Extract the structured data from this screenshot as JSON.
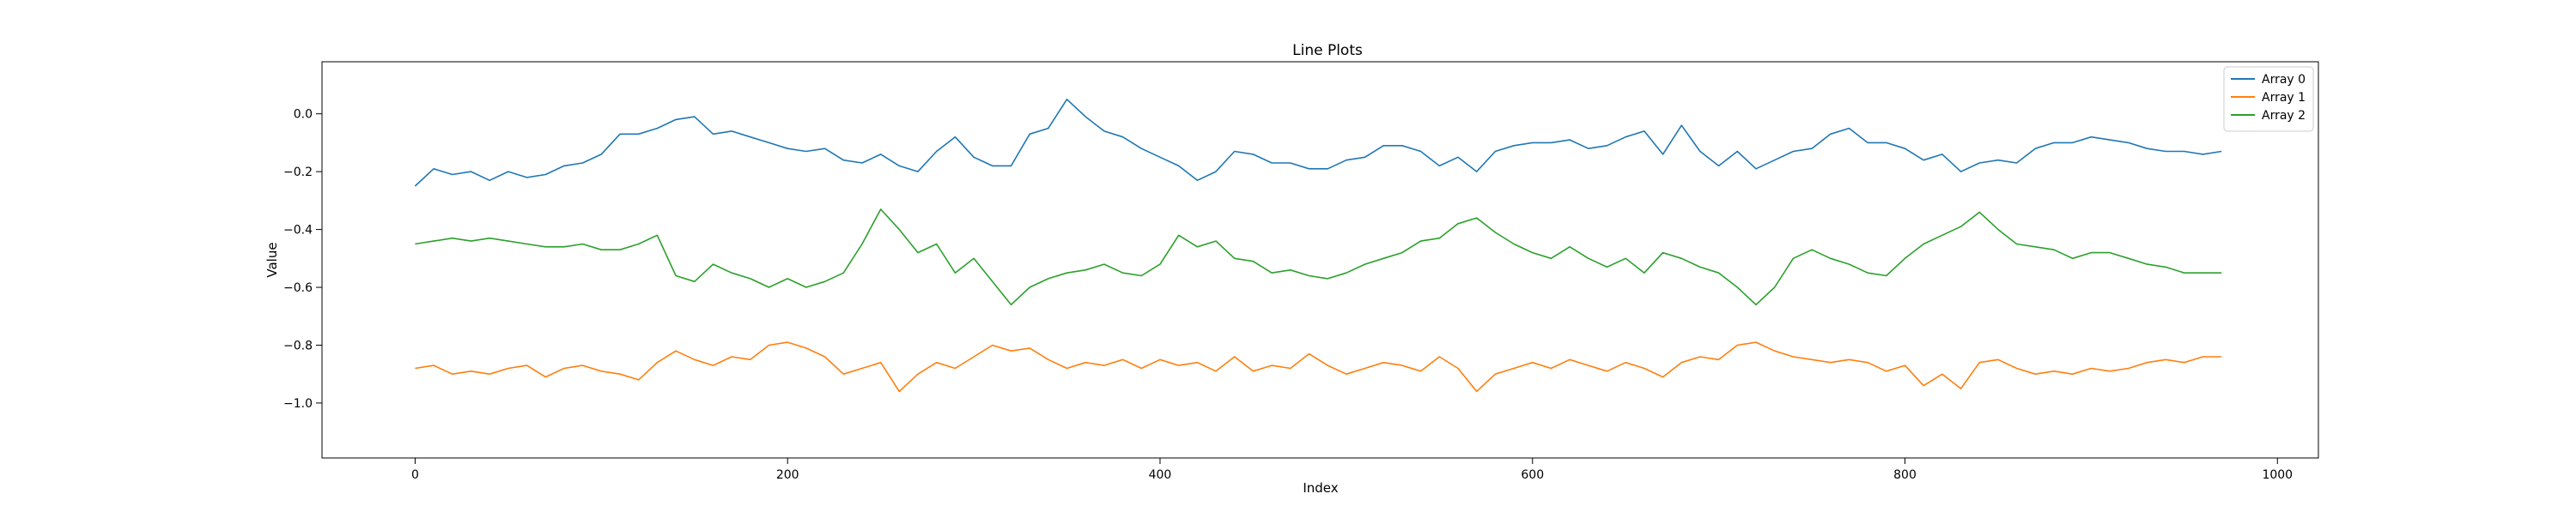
{
  "chart_data": {
    "type": "line",
    "title": "Line Plots",
    "xlabel": "Index",
    "ylabel": "Value",
    "xlim": [
      -50,
      1022
    ],
    "ylim": [
      -1.19,
      0.18
    ],
    "x_ticks": [
      0,
      200,
      400,
      600,
      800,
      1000
    ],
    "x_tick_labels": [
      "0",
      "200",
      "400",
      "600",
      "800",
      "1000"
    ],
    "y_ticks": [
      0.0,
      -0.2,
      -0.4,
      -0.6,
      -0.8,
      -1.0
    ],
    "y_tick_labels": [
      "0.0",
      "−0.2",
      "−0.4",
      "−0.6",
      "−0.8",
      "−1.0"
    ],
    "grid": false,
    "legend_position": "top-right",
    "series": [
      {
        "name": "Array 0",
        "color": "#1f77b4",
        "x": [
          0,
          10,
          20,
          30,
          40,
          50,
          60,
          70,
          80,
          90,
          100,
          110,
          120,
          130,
          140,
          150,
          160,
          170,
          180,
          190,
          200,
          210,
          220,
          230,
          240,
          250,
          260,
          270,
          280,
          290,
          300,
          310,
          320,
          330,
          340,
          350,
          360,
          370,
          380,
          390,
          400,
          410,
          420,
          430,
          440,
          450,
          460,
          470,
          480,
          490,
          500,
          510,
          520,
          530,
          540,
          550,
          560,
          570,
          580,
          590,
          600,
          610,
          620,
          630,
          640,
          650,
          660,
          670,
          680,
          690,
          700,
          710,
          720,
          730,
          740,
          750,
          760,
          770,
          780,
          790,
          800,
          810,
          820,
          830,
          840,
          850,
          860,
          870,
          880,
          890,
          900,
          910,
          920,
          930,
          940,
          950,
          960,
          970
        ],
        "values": [
          -0.25,
          -0.19,
          -0.21,
          -0.2,
          -0.23,
          -0.2,
          -0.22,
          -0.21,
          -0.18,
          -0.17,
          -0.14,
          -0.07,
          -0.07,
          -0.05,
          -0.02,
          -0.01,
          -0.07,
          -0.06,
          -0.08,
          -0.1,
          -0.12,
          -0.13,
          -0.12,
          -0.16,
          -0.17,
          -0.14,
          -0.18,
          -0.2,
          -0.13,
          -0.08,
          -0.15,
          -0.18,
          -0.18,
          -0.07,
          -0.05,
          0.05,
          -0.01,
          -0.06,
          -0.08,
          -0.12,
          -0.15,
          -0.18,
          -0.23,
          -0.2,
          -0.13,
          -0.14,
          -0.17,
          -0.17,
          -0.19,
          -0.19,
          -0.16,
          -0.15,
          -0.11,
          -0.11,
          -0.13,
          -0.18,
          -0.15,
          -0.2,
          -0.13,
          -0.11,
          -0.1,
          -0.1,
          -0.09,
          -0.12,
          -0.11,
          -0.08,
          -0.06,
          -0.14,
          -0.04,
          -0.13,
          -0.18,
          -0.13,
          -0.19,
          -0.16,
          -0.13,
          -0.12,
          -0.07,
          -0.05,
          -0.1,
          -0.1,
          -0.12,
          -0.16,
          -0.14,
          -0.2,
          -0.17,
          -0.16,
          -0.17,
          -0.12,
          -0.1,
          -0.1,
          -0.08,
          -0.09,
          -0.1,
          -0.12,
          -0.13,
          -0.13,
          -0.14,
          -0.13
        ]
      },
      {
        "name": "Array 1",
        "color": "#ff7f0e",
        "x": [
          0,
          10,
          20,
          30,
          40,
          50,
          60,
          70,
          80,
          90,
          100,
          110,
          120,
          130,
          140,
          150,
          160,
          170,
          180,
          190,
          200,
          210,
          220,
          230,
          240,
          250,
          260,
          270,
          280,
          290,
          300,
          310,
          320,
          330,
          340,
          350,
          360,
          370,
          380,
          390,
          400,
          410,
          420,
          430,
          440,
          450,
          460,
          470,
          480,
          490,
          500,
          510,
          520,
          530,
          540,
          550,
          560,
          570,
          580,
          590,
          600,
          610,
          620,
          630,
          640,
          650,
          660,
          670,
          680,
          690,
          700,
          710,
          720,
          730,
          740,
          750,
          760,
          770,
          780,
          790,
          800,
          810,
          820,
          830,
          840,
          850,
          860,
          870,
          880,
          890,
          900,
          910,
          920,
          930,
          940,
          950,
          960,
          970
        ],
        "values": [
          -0.88,
          -0.87,
          -0.9,
          -0.89,
          -0.9,
          -0.88,
          -0.87,
          -0.91,
          -0.88,
          -0.87,
          -0.89,
          -0.9,
          -0.92,
          -0.86,
          -0.82,
          -0.85,
          -0.87,
          -0.84,
          -0.85,
          -0.8,
          -0.79,
          -0.81,
          -0.84,
          -0.9,
          -0.88,
          -0.86,
          -0.96,
          -0.9,
          -0.86,
          -0.88,
          -0.84,
          -0.8,
          -0.82,
          -0.81,
          -0.85,
          -0.88,
          -0.86,
          -0.87,
          -0.85,
          -0.88,
          -0.85,
          -0.87,
          -0.86,
          -0.89,
          -0.84,
          -0.89,
          -0.87,
          -0.88,
          -0.83,
          -0.87,
          -0.9,
          -0.88,
          -0.86,
          -0.87,
          -0.89,
          -0.84,
          -0.88,
          -0.96,
          -0.9,
          -0.88,
          -0.86,
          -0.88,
          -0.85,
          -0.87,
          -0.89,
          -0.86,
          -0.88,
          -0.91,
          -0.86,
          -0.84,
          -0.85,
          -0.8,
          -0.79,
          -0.82,
          -0.84,
          -0.85,
          -0.86,
          -0.85,
          -0.86,
          -0.89,
          -0.87,
          -0.94,
          -0.9,
          -0.95,
          -0.86,
          -0.85,
          -0.88,
          -0.9,
          -0.89,
          -0.9,
          -0.88,
          -0.89,
          -0.88,
          -0.86,
          -0.85,
          -0.86,
          -0.84,
          -0.84
        ]
      },
      {
        "name": "Array 2",
        "color": "#2ca02c",
        "x": [
          0,
          10,
          20,
          30,
          40,
          50,
          60,
          70,
          80,
          90,
          100,
          110,
          120,
          130,
          140,
          150,
          160,
          170,
          180,
          190,
          200,
          210,
          220,
          230,
          240,
          250,
          260,
          270,
          280,
          290,
          300,
          310,
          320,
          330,
          340,
          350,
          360,
          370,
          380,
          390,
          400,
          410,
          420,
          430,
          440,
          450,
          460,
          470,
          480,
          490,
          500,
          510,
          520,
          530,
          540,
          550,
          560,
          570,
          580,
          590,
          600,
          610,
          620,
          630,
          640,
          650,
          660,
          670,
          680,
          690,
          700,
          710,
          720,
          730,
          740,
          750,
          760,
          770,
          780,
          790,
          800,
          810,
          820,
          830,
          840,
          850,
          860,
          870,
          880,
          890,
          900,
          910,
          920,
          930,
          940,
          950,
          960,
          970
        ],
        "values": [
          -0.45,
          -0.44,
          -0.43,
          -0.44,
          -0.43,
          -0.44,
          -0.45,
          -0.46,
          -0.46,
          -0.45,
          -0.47,
          -0.47,
          -0.45,
          -0.42,
          -0.56,
          -0.58,
          -0.52,
          -0.55,
          -0.57,
          -0.6,
          -0.57,
          -0.6,
          -0.58,
          -0.55,
          -0.45,
          -0.33,
          -0.4,
          -0.48,
          -0.45,
          -0.55,
          -0.5,
          -0.58,
          -0.66,
          -0.6,
          -0.57,
          -0.55,
          -0.54,
          -0.52,
          -0.55,
          -0.56,
          -0.52,
          -0.42,
          -0.46,
          -0.44,
          -0.5,
          -0.51,
          -0.55,
          -0.54,
          -0.56,
          -0.57,
          -0.55,
          -0.52,
          -0.5,
          -0.48,
          -0.44,
          -0.43,
          -0.38,
          -0.36,
          -0.41,
          -0.45,
          -0.48,
          -0.5,
          -0.46,
          -0.5,
          -0.53,
          -0.5,
          -0.55,
          -0.48,
          -0.5,
          -0.53,
          -0.55,
          -0.6,
          -0.66,
          -0.6,
          -0.5,
          -0.47,
          -0.5,
          -0.52,
          -0.55,
          -0.56,
          -0.5,
          -0.45,
          -0.42,
          -0.39,
          -0.34,
          -0.4,
          -0.45,
          -0.46,
          -0.47,
          -0.5,
          -0.48,
          -0.48,
          -0.5,
          -0.52,
          -0.53,
          -0.55,
          -0.55,
          -0.55
        ]
      }
    ]
  }
}
